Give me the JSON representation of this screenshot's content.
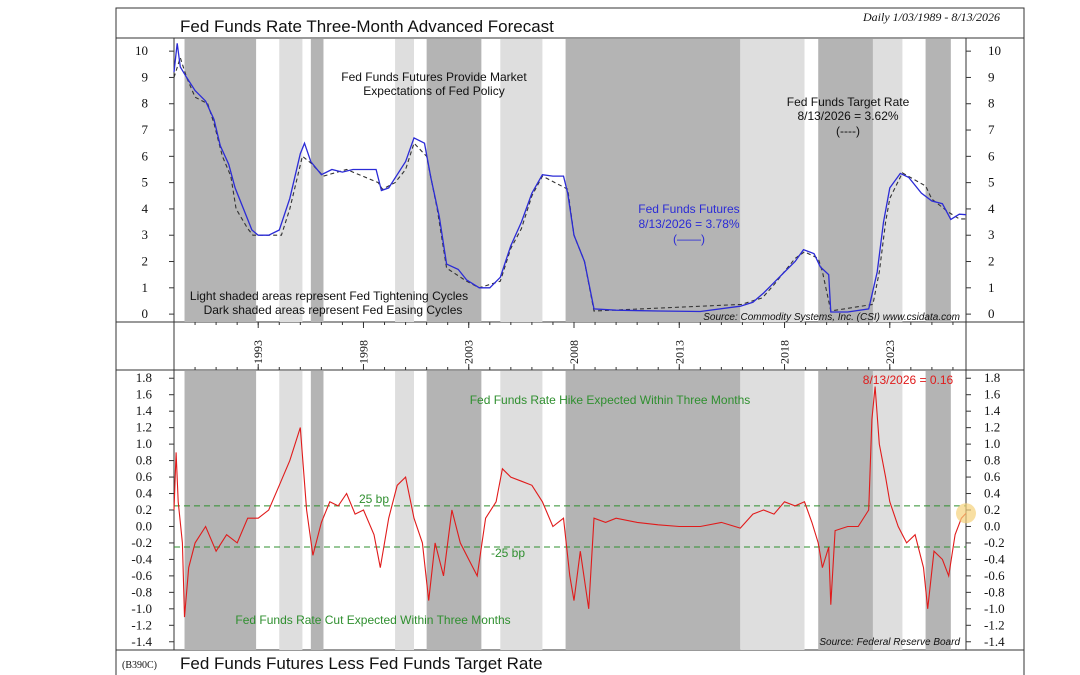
{
  "header": {
    "title_top": "Fed Funds Rate Three-Month Advanced Forecast",
    "date_range": "Daily 1/03/1989 - 8/13/2026",
    "title_bottom": "Fed Funds Futures Less Fed Funds Target Rate",
    "chart_id": "(B390C)"
  },
  "colors": {
    "futures_line": "#2b2bd6",
    "target_line": "#333333",
    "spread_line": "#e01b1b",
    "threshold_line": "#2f8f2f",
    "dark_shade": "#b4b4b4",
    "light_shade": "#dedede",
    "highlight": "#f5d27a"
  },
  "top_panel": {
    "annotations": {
      "fffp_line1": "Fed Funds Futures Provide Market",
      "fffp_line2": "Expectations of Fed Policy",
      "target_label": "Fed Funds Target Rate",
      "target_value": "8/13/2026 = 3.62%",
      "target_key": "(----)",
      "futures_label": "Fed Funds Futures",
      "futures_value": "8/13/2026 = 3.78%",
      "futures_key": "(——)",
      "shade_light": "Light shaded areas represent Fed Tightening Cycles",
      "shade_dark": "Dark shaded areas represent Fed Easing Cycles"
    },
    "source": "Source: Commodity Systems, Inc. (CSI) www.csidata.com",
    "y_ticks": [
      "0",
      "1",
      "2",
      "3",
      "4",
      "5",
      "6",
      "7",
      "8",
      "9",
      "10"
    ]
  },
  "bottom_panel": {
    "annotations": {
      "hike": "Fed Funds Rate Hike Expected Within Three Months",
      "cut": "Fed Funds Rate Cut Expected Within Three Months",
      "plus25": "25 bp",
      "minus25": "-25 bp",
      "latest": "8/13/2026 = 0.16"
    },
    "source": "Source: Federal Reserve Board",
    "y_ticks": [
      "1.8",
      "1.6",
      "1.4",
      "1.2",
      "1.0",
      "0.8",
      "0.6",
      "0.4",
      "0.2",
      "0.0",
      "-0.2",
      "-0.4",
      "-0.6",
      "-0.8",
      "-1.0",
      "-1.2",
      "-1.4"
    ]
  },
  "x_ticks": [
    "1993",
    "1998",
    "2003",
    "2008",
    "2013",
    "2018",
    "2023"
  ],
  "chart_data": [
    {
      "type": "line",
      "title": "Fed Funds Rate Three-Month Advanced Forecast",
      "x_range": [
        1989.0,
        2026.62
      ],
      "ylim": [
        -0.3,
        10.5
      ],
      "grid": false,
      "shading": {
        "dark_easing": [
          [
            1989.5,
            1992.9
          ],
          [
            1995.5,
            1996.1
          ],
          [
            2001.0,
            2003.6
          ],
          [
            2007.6,
            2015.9
          ],
          [
            2019.6,
            2022.2
          ],
          [
            2024.7,
            2025.9
          ]
        ],
        "light_tightening": [
          [
            1994.0,
            1995.1
          ],
          [
            1999.5,
            2000.4
          ],
          [
            2004.5,
            2006.5
          ],
          [
            2015.9,
            2018.95
          ],
          [
            2022.2,
            2023.6
          ]
        ]
      },
      "series": [
        {
          "name": "Fed Funds Futures",
          "points": [
            [
              1989.0,
              9.2
            ],
            [
              1989.15,
              10.3
            ],
            [
              1989.3,
              9.4
            ],
            [
              1989.6,
              9.0
            ],
            [
              1990.0,
              8.5
            ],
            [
              1990.5,
              8.1
            ],
            [
              1990.9,
              7.4
            ],
            [
              1991.2,
              6.4
            ],
            [
              1991.6,
              5.7
            ],
            [
              1991.9,
              4.8
            ],
            [
              1992.3,
              4.0
            ],
            [
              1992.7,
              3.2
            ],
            [
              1993.0,
              3.0
            ],
            [
              1993.5,
              3.0
            ],
            [
              1994.0,
              3.2
            ],
            [
              1994.5,
              4.4
            ],
            [
              1995.0,
              6.1
            ],
            [
              1995.2,
              6.5
            ],
            [
              1995.5,
              5.8
            ],
            [
              1996.0,
              5.3
            ],
            [
              1996.5,
              5.5
            ],
            [
              1997.0,
              5.4
            ],
            [
              1997.5,
              5.5
            ],
            [
              1998.0,
              5.5
            ],
            [
              1998.6,
              5.5
            ],
            [
              1998.85,
              4.7
            ],
            [
              1999.2,
              4.8
            ],
            [
              1999.6,
              5.3
            ],
            [
              2000.0,
              5.8
            ],
            [
              2000.4,
              6.7
            ],
            [
              2000.9,
              6.5
            ],
            [
              2001.2,
              5.2
            ],
            [
              2001.6,
              3.7
            ],
            [
              2001.95,
              1.9
            ],
            [
              2002.5,
              1.7
            ],
            [
              2002.9,
              1.3
            ],
            [
              2003.5,
              1.0
            ],
            [
              2004.0,
              1.0
            ],
            [
              2004.5,
              1.4
            ],
            [
              2005.0,
              2.6
            ],
            [
              2005.5,
              3.5
            ],
            [
              2006.0,
              4.6
            ],
            [
              2006.5,
              5.3
            ],
            [
              2007.0,
              5.25
            ],
            [
              2007.5,
              5.25
            ],
            [
              2007.7,
              4.6
            ],
            [
              2008.0,
              3.0
            ],
            [
              2008.5,
              2.0
            ],
            [
              2008.95,
              0.2
            ],
            [
              2010.0,
              0.15
            ],
            [
              2012.0,
              0.12
            ],
            [
              2014.0,
              0.1
            ],
            [
              2015.9,
              0.3
            ],
            [
              2016.5,
              0.45
            ],
            [
              2017.0,
              0.8
            ],
            [
              2017.5,
              1.2
            ],
            [
              2018.0,
              1.6
            ],
            [
              2018.5,
              2.0
            ],
            [
              2018.9,
              2.45
            ],
            [
              2019.4,
              2.3
            ],
            [
              2019.7,
              1.8
            ],
            [
              2020.1,
              1.5
            ],
            [
              2020.2,
              0.08
            ],
            [
              2021.0,
              0.08
            ],
            [
              2022.0,
              0.2
            ],
            [
              2022.4,
              1.6
            ],
            [
              2022.7,
              3.5
            ],
            [
              2023.0,
              4.8
            ],
            [
              2023.5,
              5.35
            ],
            [
              2023.9,
              5.2
            ],
            [
              2024.5,
              4.6
            ],
            [
              2025.0,
              4.3
            ],
            [
              2025.5,
              4.2
            ],
            [
              2025.9,
              3.6
            ],
            [
              2026.3,
              3.8
            ],
            [
              2026.62,
              3.78
            ]
          ]
        },
        {
          "name": "Fed Funds Target Rate",
          "points": [
            [
              1989.0,
              9.0
            ],
            [
              1989.3,
              9.75
            ],
            [
              1989.6,
              9.0
            ],
            [
              1990.0,
              8.25
            ],
            [
              1990.6,
              8.0
            ],
            [
              1990.9,
              7.25
            ],
            [
              1991.3,
              6.0
            ],
            [
              1991.7,
              5.25
            ],
            [
              1991.95,
              4.0
            ],
            [
              1992.5,
              3.25
            ],
            [
              1992.75,
              3.0
            ],
            [
              1994.1,
              3.0
            ],
            [
              1994.5,
              4.0
            ],
            [
              1995.1,
              6.0
            ],
            [
              1995.5,
              5.75
            ],
            [
              1996.1,
              5.25
            ],
            [
              1997.2,
              5.5
            ],
            [
              1998.7,
              5.0
            ],
            [
              1998.9,
              4.75
            ],
            [
              1999.5,
              5.0
            ],
            [
              2000.0,
              5.5
            ],
            [
              2000.4,
              6.5
            ],
            [
              2001.0,
              6.0
            ],
            [
              2001.5,
              4.0
            ],
            [
              2001.95,
              1.75
            ],
            [
              2002.9,
              1.25
            ],
            [
              2003.5,
              1.0
            ],
            [
              2004.5,
              1.25
            ],
            [
              2005.0,
              2.5
            ],
            [
              2005.5,
              3.25
            ],
            [
              2006.0,
              4.5
            ],
            [
              2006.5,
              5.25
            ],
            [
              2007.7,
              4.75
            ],
            [
              2008.0,
              3.0
            ],
            [
              2008.5,
              2.0
            ],
            [
              2008.95,
              0.12
            ],
            [
              2015.95,
              0.37
            ],
            [
              2016.95,
              0.62
            ],
            [
              2017.5,
              1.12
            ],
            [
              2018.0,
              1.62
            ],
            [
              2018.5,
              2.12
            ],
            [
              2018.95,
              2.37
            ],
            [
              2019.6,
              2.12
            ],
            [
              2019.8,
              1.62
            ],
            [
              2020.2,
              0.12
            ],
            [
              2022.2,
              0.37
            ],
            [
              2022.5,
              1.6
            ],
            [
              2022.8,
              3.5
            ],
            [
              2023.0,
              4.4
            ],
            [
              2023.6,
              5.37
            ],
            [
              2024.7,
              4.87
            ],
            [
              2025.0,
              4.37
            ],
            [
              2025.8,
              3.87
            ],
            [
              2026.3,
              3.62
            ],
            [
              2026.62,
              3.62
            ]
          ]
        }
      ]
    },
    {
      "type": "line",
      "title": "Fed Funds Futures Less Fed Funds Target Rate",
      "x_range": [
        1989.0,
        2026.62
      ],
      "ylim": [
        -1.5,
        1.9
      ],
      "grid": false,
      "reference_lines": [
        0.25,
        -0.25
      ],
      "series": [
        {
          "name": "Fed Funds Futures Less Fed Funds Target Rate",
          "points": [
            [
              1989.0,
              0.2
            ],
            [
              1989.1,
              0.9
            ],
            [
              1989.2,
              0.3
            ],
            [
              1989.4,
              -0.2
            ],
            [
              1989.5,
              -1.1
            ],
            [
              1989.7,
              -0.5
            ],
            [
              1990.0,
              -0.2
            ],
            [
              1990.5,
              0.0
            ],
            [
              1991.0,
              -0.3
            ],
            [
              1991.5,
              -0.1
            ],
            [
              1992.0,
              -0.2
            ],
            [
              1992.5,
              0.1
            ],
            [
              1993.0,
              0.1
            ],
            [
              1993.5,
              0.2
            ],
            [
              1994.0,
              0.5
            ],
            [
              1994.5,
              0.8
            ],
            [
              1995.0,
              1.2
            ],
            [
              1995.3,
              0.2
            ],
            [
              1995.6,
              -0.35
            ],
            [
              1996.0,
              0.05
            ],
            [
              1996.4,
              0.3
            ],
            [
              1996.8,
              0.25
            ],
            [
              1997.2,
              0.4
            ],
            [
              1997.6,
              0.15
            ],
            [
              1998.0,
              0.2
            ],
            [
              1998.5,
              -0.1
            ],
            [
              1998.8,
              -0.5
            ],
            [
              1999.2,
              0.1
            ],
            [
              1999.6,
              0.5
            ],
            [
              2000.0,
              0.6
            ],
            [
              2000.4,
              0.1
            ],
            [
              2000.8,
              -0.2
            ],
            [
              2001.1,
              -0.9
            ],
            [
              2001.4,
              -0.2
            ],
            [
              2001.8,
              -0.6
            ],
            [
              2002.2,
              0.2
            ],
            [
              2002.6,
              -0.2
            ],
            [
              2003.0,
              -0.4
            ],
            [
              2003.4,
              -0.6
            ],
            [
              2003.8,
              0.1
            ],
            [
              2004.3,
              0.3
            ],
            [
              2004.6,
              0.7
            ],
            [
              2005.0,
              0.6
            ],
            [
              2005.5,
              0.55
            ],
            [
              2006.0,
              0.5
            ],
            [
              2006.5,
              0.3
            ],
            [
              2007.0,
              0.0
            ],
            [
              2007.5,
              0.1
            ],
            [
              2007.8,
              -0.6
            ],
            [
              2008.0,
              -0.9
            ],
            [
              2008.3,
              -0.3
            ],
            [
              2008.7,
              -1.0
            ],
            [
              2008.95,
              0.1
            ],
            [
              2009.5,
              0.05
            ],
            [
              2010.0,
              0.1
            ],
            [
              2011.0,
              0.05
            ],
            [
              2012.0,
              0.02
            ],
            [
              2013.0,
              0.0
            ],
            [
              2014.0,
              0.0
            ],
            [
              2015.0,
              0.05
            ],
            [
              2015.9,
              -0.02
            ],
            [
              2016.5,
              0.15
            ],
            [
              2017.0,
              0.2
            ],
            [
              2017.5,
              0.15
            ],
            [
              2018.0,
              0.3
            ],
            [
              2018.5,
              0.25
            ],
            [
              2018.95,
              0.3
            ],
            [
              2019.3,
              0.05
            ],
            [
              2019.6,
              -0.2
            ],
            [
              2019.8,
              -0.5
            ],
            [
              2020.1,
              -0.25
            ],
            [
              2020.2,
              -0.95
            ],
            [
              2020.4,
              -0.05
            ],
            [
              2021.0,
              0.0
            ],
            [
              2021.5,
              0.0
            ],
            [
              2022.0,
              0.2
            ],
            [
              2022.15,
              1.3
            ],
            [
              2022.3,
              1.7
            ],
            [
              2022.5,
              1.0
            ],
            [
              2022.8,
              0.6
            ],
            [
              2023.0,
              0.3
            ],
            [
              2023.4,
              0.0
            ],
            [
              2023.8,
              -0.2
            ],
            [
              2024.2,
              -0.1
            ],
            [
              2024.6,
              -0.5
            ],
            [
              2024.8,
              -1.0
            ],
            [
              2025.1,
              -0.3
            ],
            [
              2025.5,
              -0.4
            ],
            [
              2025.8,
              -0.6
            ],
            [
              2026.1,
              -0.1
            ],
            [
              2026.4,
              0.1
            ],
            [
              2026.62,
              0.16
            ]
          ]
        }
      ]
    }
  ]
}
